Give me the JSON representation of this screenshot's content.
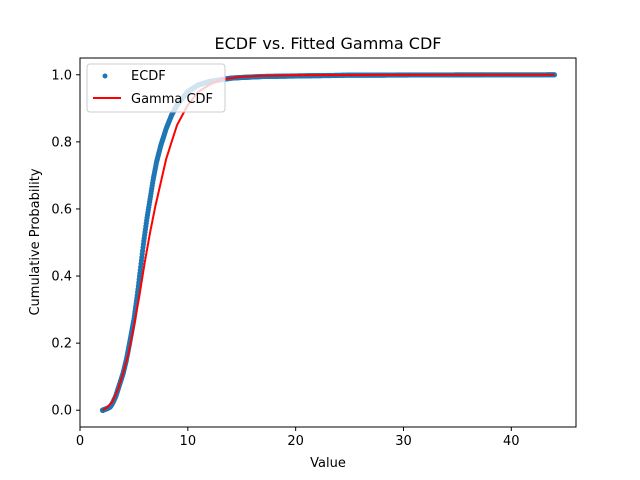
{
  "chart_data": {
    "type": "line",
    "title": "ECDF vs. Fitted Gamma CDF",
    "xlabel": "Value",
    "ylabel": "Cumulative Probability",
    "xlim": [
      0,
      46
    ],
    "ylim": [
      -0.05,
      1.05
    ],
    "xticks": [
      0,
      10,
      20,
      30,
      40
    ],
    "yticks": [
      0.0,
      0.2,
      0.4,
      0.6,
      0.8,
      1.0
    ],
    "xtick_labels": [
      "0",
      "10",
      "20",
      "30",
      "40"
    ],
    "ytick_labels": [
      "0.0",
      "0.2",
      "0.4",
      "0.6",
      "0.8",
      "1.0"
    ],
    "grid": false,
    "legend": {
      "position": "upper-left"
    },
    "series": [
      {
        "name": "ECDF",
        "style": "points",
        "color": "#1f77b4",
        "x": [
          2.1,
          2.5,
          2.8,
          3.0,
          3.3,
          3.6,
          4.0,
          4.3,
          4.6,
          5.0,
          5.3,
          5.6,
          5.9,
          6.2,
          6.5,
          6.8,
          7.1,
          7.5,
          8.0,
          8.5,
          9.0,
          9.5,
          10.0,
          10.5,
          11.0,
          12.0,
          13.0,
          14.0,
          15.0,
          17.0,
          19.0,
          21.0,
          23.5,
          25.0,
          28.0,
          31.0,
          34.0,
          37.0,
          40.0,
          42.0,
          44.0
        ],
        "y": [
          0.0,
          0.005,
          0.01,
          0.02,
          0.04,
          0.07,
          0.11,
          0.15,
          0.2,
          0.27,
          0.34,
          0.42,
          0.5,
          0.57,
          0.63,
          0.69,
          0.74,
          0.79,
          0.84,
          0.88,
          0.91,
          0.93,
          0.95,
          0.96,
          0.97,
          0.98,
          0.985,
          0.99,
          0.992,
          0.995,
          0.996,
          0.997,
          0.998,
          0.999,
          0.999,
          0.9995,
          0.9995,
          0.9998,
          0.9999,
          0.9999,
          1.0
        ]
      },
      {
        "name": "Gamma CDF",
        "style": "line",
        "color": "#ff0000",
        "x": [
          2.1,
          2.5,
          3.0,
          3.5,
          4.0,
          4.5,
          5.0,
          5.5,
          6.0,
          6.5,
          7.0,
          7.5,
          8.0,
          8.5,
          9.0,
          9.5,
          10.0,
          11.0,
          12.0,
          13.0,
          14.0,
          15.0,
          17.0,
          20.0,
          25.0,
          30.0,
          35.0,
          40.0,
          44.0
        ],
        "y": [
          0.0,
          0.008,
          0.025,
          0.06,
          0.11,
          0.17,
          0.25,
          0.34,
          0.44,
          0.53,
          0.61,
          0.68,
          0.75,
          0.8,
          0.85,
          0.88,
          0.91,
          0.95,
          0.97,
          0.985,
          0.99,
          0.994,
          0.997,
          0.999,
          0.9995,
          0.9998,
          0.9999,
          1.0,
          1.0
        ]
      }
    ]
  }
}
